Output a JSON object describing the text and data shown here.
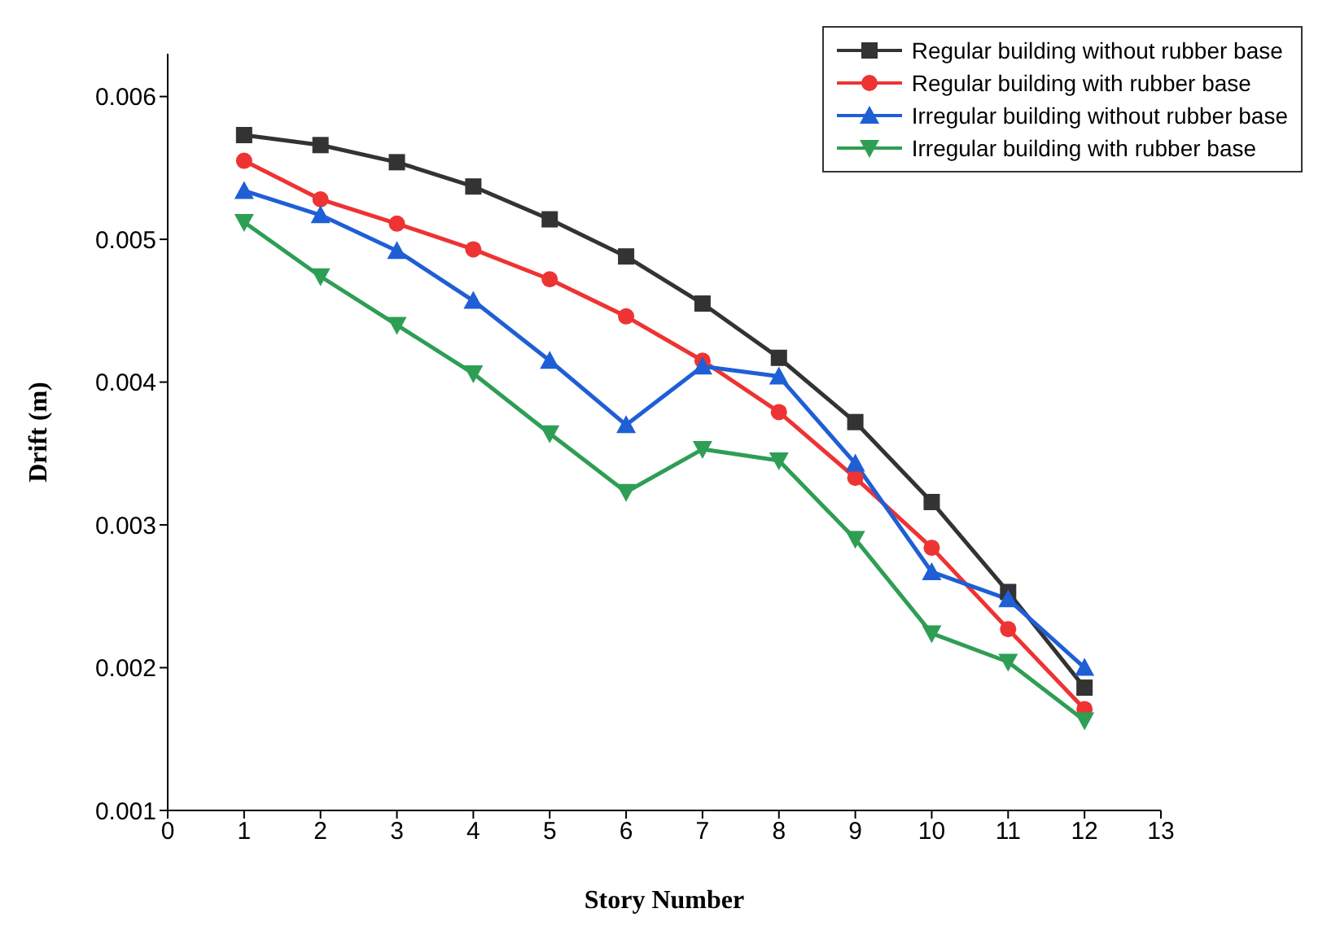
{
  "chart_data": {
    "type": "line",
    "xlabel": "Story Number",
    "ylabel": "Drift (m)",
    "x": [
      1,
      2,
      3,
      4,
      5,
      6,
      7,
      8,
      9,
      10,
      11,
      12
    ],
    "xlim": [
      0,
      13
    ],
    "xticks": [
      0,
      1,
      2,
      3,
      4,
      5,
      6,
      7,
      8,
      9,
      10,
      11,
      12,
      13
    ],
    "ylim": [
      0.001,
      0.0063
    ],
    "yticks": [
      0.001,
      0.002,
      0.003,
      0.004,
      0.005,
      0.006
    ],
    "grid": false,
    "legend": "top right",
    "line_style": "solid",
    "series": [
      {
        "name": "Regular building without rubber base",
        "color": "#333333",
        "marker": "square",
        "values": [
          0.00573,
          0.00566,
          0.00554,
          0.00537,
          0.00514,
          0.00488,
          0.00455,
          0.00417,
          0.00372,
          0.00316,
          0.00253,
          0.00186
        ]
      },
      {
        "name": "Regular building with rubber base",
        "color": "#ee3333",
        "marker": "circle",
        "values": [
          0.00555,
          0.00528,
          0.00511,
          0.00493,
          0.00472,
          0.00446,
          0.00415,
          0.00379,
          0.00333,
          0.00284,
          0.00227,
          0.00171
        ]
      },
      {
        "name": "Irregular building without rubber base",
        "color": "#1f5fd6",
        "marker": "triangle",
        "values": [
          0.00534,
          0.00517,
          0.00492,
          0.00457,
          0.00415,
          0.0037,
          0.00411,
          0.00404,
          0.00343,
          0.00267,
          0.00248,
          0.002
        ]
      },
      {
        "name": "Irregular building with rubber base",
        "color": "#2e9e55",
        "marker": "triangle-down",
        "values": [
          0.00512,
          0.00474,
          0.0044,
          0.00406,
          0.00364,
          0.00323,
          0.00353,
          0.00345,
          0.0029,
          0.00224,
          0.00204,
          0.00163
        ]
      }
    ]
  }
}
